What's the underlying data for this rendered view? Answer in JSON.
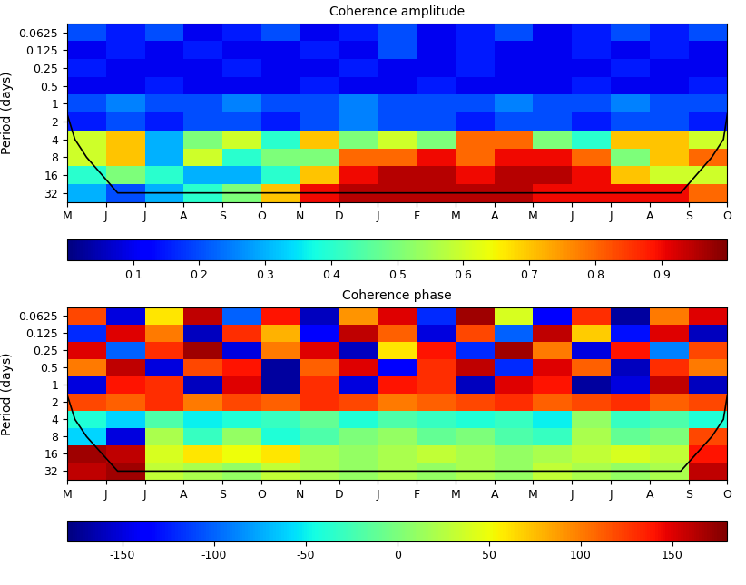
{
  "chart_data": [
    {
      "type": "heatmap",
      "title": "Coherence amplitude",
      "y_label": "Period (days)",
      "categories": [
        "M",
        "J",
        "J",
        "A",
        "S",
        "O",
        "N",
        "D",
        "J",
        "F",
        "M",
        "A",
        "M",
        "J",
        "J",
        "A",
        "S",
        "O"
      ],
      "log": "y",
      "ylim": [
        45.25,
        0.0442
      ],
      "yticks": [
        0.0625,
        0.125,
        0.25,
        0.5,
        1,
        2,
        4,
        8,
        16,
        32
      ],
      "y_edges": [
        0.0442,
        0.0884,
        0.177,
        0.354,
        0.707,
        1.414,
        2.83,
        5.66,
        11.3,
        22.6,
        45.25
      ],
      "cells": [
        [
          0.2,
          0.15,
          0.2,
          0.1,
          0.15,
          0.2,
          0.1,
          0.15,
          0.2,
          0.1,
          0.15,
          0.2,
          0.1,
          0.15,
          0.2,
          0.15,
          0.2
        ],
        [
          0.1,
          0.15,
          0.1,
          0.15,
          0.1,
          0.1,
          0.15,
          0.1,
          0.2,
          0.1,
          0.15,
          0.1,
          0.1,
          0.15,
          0.1,
          0.15,
          0.1
        ],
        [
          0.15,
          0.1,
          0.1,
          0.1,
          0.15,
          0.1,
          0.1,
          0.15,
          0.1,
          0.1,
          0.15,
          0.1,
          0.1,
          0.1,
          0.15,
          0.1,
          0.1
        ],
        [
          0.1,
          0.1,
          0.15,
          0.1,
          0.1,
          0.1,
          0.15,
          0.1,
          0.1,
          0.15,
          0.1,
          0.1,
          0.1,
          0.15,
          0.1,
          0.1,
          0.15
        ],
        [
          0.2,
          0.25,
          0.2,
          0.2,
          0.25,
          0.2,
          0.2,
          0.25,
          0.2,
          0.2,
          0.2,
          0.25,
          0.2,
          0.2,
          0.25,
          0.2,
          0.2
        ],
        [
          0.15,
          0.2,
          0.15,
          0.2,
          0.2,
          0.15,
          0.2,
          0.25,
          0.2,
          0.2,
          0.15,
          0.2,
          0.2,
          0.15,
          0.2,
          0.2,
          0.15
        ],
        [
          0.6,
          0.7,
          0.3,
          0.5,
          0.6,
          0.4,
          0.7,
          0.5,
          0.6,
          0.5,
          0.8,
          0.8,
          0.5,
          0.4,
          0.7,
          0.7,
          0.6
        ],
        [
          0.6,
          0.7,
          0.3,
          0.6,
          0.4,
          0.5,
          0.5,
          0.8,
          0.8,
          0.9,
          0.8,
          0.9,
          0.9,
          0.8,
          0.5,
          0.7,
          0.8
        ],
        [
          0.4,
          0.5,
          0.4,
          0.3,
          0.3,
          0.4,
          0.7,
          0.9,
          0.95,
          0.95,
          0.9,
          0.95,
          0.95,
          0.9,
          0.7,
          0.6,
          0.6
        ],
        [
          0.3,
          0.2,
          0.3,
          0.4,
          0.5,
          0.7,
          0.9,
          0.95,
          0.95,
          0.95,
          0.95,
          0.95,
          0.9,
          0.9,
          0.9,
          0.9,
          0.8
        ]
      ],
      "cone_x": [
        0,
        0.2,
        0.5,
        0.9,
        1.3,
        15.8,
        16.2,
        16.6,
        16.9,
        17
      ],
      "cone_y": [
        1.5,
        4,
        8,
        16,
        32,
        32,
        16,
        8,
        4,
        1.5
      ],
      "colorbar_range": [
        0,
        1
      ],
      "colorbar_ticks": [
        0.1,
        0.2,
        0.3,
        0.4,
        0.5,
        0.6,
        0.7,
        0.8,
        0.9
      ]
    },
    {
      "type": "heatmap",
      "title": "Coherence phase",
      "y_label": "Period (days)",
      "categories": [
        "M",
        "J",
        "J",
        "A",
        "S",
        "O",
        "N",
        "D",
        "J",
        "F",
        "M",
        "A",
        "M",
        "J",
        "J",
        "A",
        "S",
        "O"
      ],
      "log": "y",
      "ylim": [
        45.25,
        0.0442
      ],
      "yticks": [
        0.0625,
        0.125,
        0.25,
        0.5,
        1,
        2,
        4,
        8,
        16,
        32
      ],
      "y_edges": [
        0.0442,
        0.0884,
        0.177,
        0.354,
        0.707,
        1.414,
        2.83,
        5.66,
        11.3,
        22.6,
        45.25
      ],
      "cells": [
        [
          120,
          -150,
          60,
          160,
          -100,
          140,
          -160,
          90,
          150,
          -120,
          170,
          40,
          -140,
          130,
          -170,
          100,
          150
        ],
        [
          -120,
          150,
          100,
          -160,
          130,
          80,
          -140,
          160,
          110,
          -150,
          120,
          -100,
          160,
          70,
          -130,
          150,
          -160
        ],
        [
          150,
          -100,
          130,
          170,
          -150,
          100,
          150,
          -160,
          60,
          140,
          -120,
          170,
          100,
          -150,
          140,
          -90,
          120
        ],
        [
          100,
          160,
          -150,
          120,
          140,
          -170,
          110,
          150,
          -140,
          130,
          160,
          -120,
          150,
          110,
          -160,
          130,
          100
        ],
        [
          -150,
          140,
          130,
          -160,
          150,
          -170,
          130,
          -150,
          140,
          130,
          -160,
          150,
          140,
          -170,
          -150,
          160,
          -160
        ],
        [
          120,
          110,
          130,
          100,
          120,
          110,
          130,
          120,
          100,
          110,
          120,
          130,
          110,
          120,
          130,
          110,
          120
        ],
        [
          -40,
          -60,
          -20,
          -50,
          -40,
          -30,
          -10,
          -40,
          -20,
          -30,
          -40,
          -30,
          -50,
          10,
          -30,
          -20,
          -40
        ],
        [
          -60,
          -150,
          20,
          -30,
          10,
          -40,
          -20,
          0,
          10,
          -10,
          0,
          -20,
          -30,
          20,
          -10,
          0,
          120
        ],
        [
          170,
          160,
          40,
          60,
          50,
          60,
          20,
          10,
          20,
          30,
          20,
          10,
          20,
          30,
          40,
          30,
          140
        ],
        [
          160,
          170,
          30,
          20,
          10,
          30,
          20,
          10,
          20,
          10,
          20,
          10,
          30,
          20,
          10,
          20,
          160
        ]
      ],
      "cone_x": [
        0,
        0.2,
        0.5,
        0.9,
        1.3,
        15.8,
        16.2,
        16.6,
        16.9,
        17
      ],
      "cone_y": [
        1.5,
        4,
        8,
        16,
        32,
        32,
        16,
        8,
        4,
        1.5
      ],
      "colorbar_range": [
        -180,
        180
      ],
      "colorbar_ticks": [
        -150,
        -100,
        -50,
        0,
        50,
        100,
        150
      ]
    }
  ]
}
